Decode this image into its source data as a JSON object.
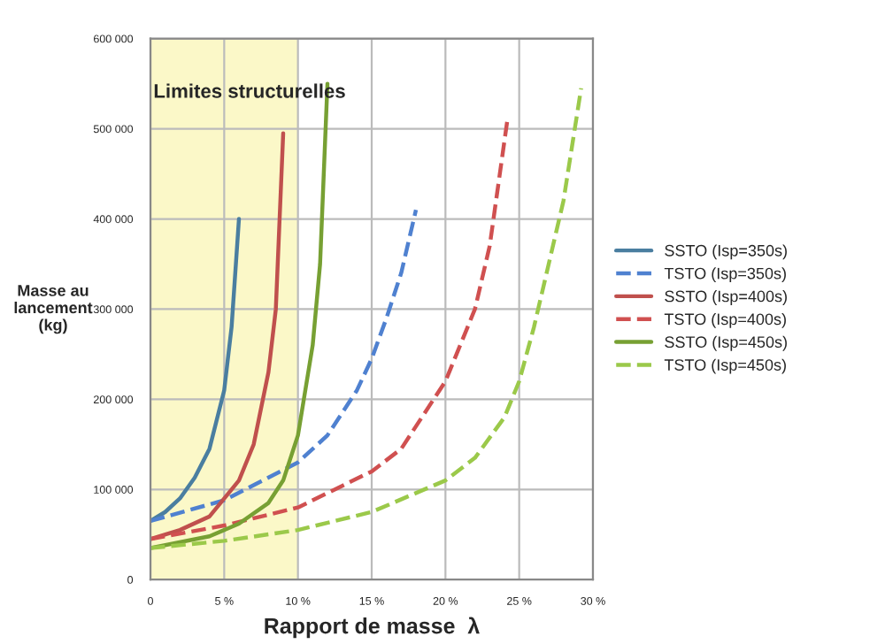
{
  "chart_data": {
    "type": "line",
    "xlabel": "Rapport de masse  λ",
    "ylabel": "Masse au\nlancement\n(kg)",
    "xlim": [
      0,
      30
    ],
    "ylim": [
      0,
      600000
    ],
    "xticks": [
      0,
      {
        "value": 5,
        "label": "5 %"
      },
      {
        "value": 10,
        "label": "10 %"
      },
      {
        "value": 15,
        "label": "15 %"
      },
      {
        "value": 20,
        "label": "20 %"
      },
      {
        "value": 25,
        "label": "25 %"
      },
      {
        "value": 30,
        "label": "30 %"
      }
    ],
    "yticks": [
      0,
      {
        "value": 100000,
        "label": "100 000"
      },
      {
        "value": 200000,
        "label": "200 000"
      },
      {
        "value": 300000,
        "label": "300 000"
      },
      {
        "value": 400000,
        "label": "400 000"
      },
      {
        "value": 500000,
        "label": "500 000"
      },
      {
        "value": 600000,
        "label": "600 000"
      }
    ],
    "grid": true,
    "legend": "right",
    "bands": [
      {
        "axis": "x",
        "from": 0,
        "to": 10,
        "label": "Limites structurelles",
        "color": "#fbf8c8"
      }
    ],
    "series": [
      {
        "name": "SSTO (Isp=350s)",
        "color": "#4a7ea0",
        "line_style": "solid",
        "x": [
          0,
          1,
          2,
          3,
          4,
          5,
          5.5,
          6
        ],
        "values": [
          65000,
          75000,
          90000,
          113000,
          145000,
          210000,
          280000,
          400000
        ]
      },
      {
        "name": "TSTO (Isp=350s)",
        "color": "#4f81d0",
        "line_style": "dashed",
        "x": [
          0,
          5,
          10,
          12,
          14,
          15,
          16,
          17,
          18
        ],
        "values": [
          65000,
          88000,
          130000,
          160000,
          210000,
          245000,
          290000,
          340000,
          410000
        ]
      },
      {
        "name": "SSTO (Isp=400s)",
        "color": "#c0504d",
        "line_style": "solid",
        "x": [
          0,
          2,
          4,
          6,
          7,
          8,
          8.5,
          9
        ],
        "values": [
          45000,
          55000,
          70000,
          110000,
          150000,
          230000,
          300000,
          495000
        ]
      },
      {
        "name": "TSTO (Isp=400s)",
        "color": "#d05050",
        "line_style": "dashed",
        "x": [
          0,
          5,
          10,
          15,
          17,
          20,
          22,
          23,
          24.2
        ],
        "values": [
          45000,
          60000,
          80000,
          120000,
          145000,
          220000,
          300000,
          370000,
          510000
        ]
      },
      {
        "name": "SSTO (Isp=450s)",
        "color": "#77a033",
        "line_style": "solid",
        "x": [
          0,
          4,
          6,
          8,
          9,
          10,
          11,
          11.5,
          12
        ],
        "values": [
          35000,
          48000,
          62000,
          85000,
          110000,
          160000,
          260000,
          350000,
          550000
        ]
      },
      {
        "name": "TSTO (Isp=450s)",
        "color": "#9bc94a",
        "line_style": "dashed",
        "x": [
          0,
          5,
          10,
          15,
          20,
          22,
          24,
          25,
          26,
          27,
          28,
          29.2
        ],
        "values": [
          35000,
          43000,
          55000,
          75000,
          110000,
          135000,
          180000,
          220000,
          280000,
          350000,
          420000,
          545000
        ]
      }
    ]
  }
}
